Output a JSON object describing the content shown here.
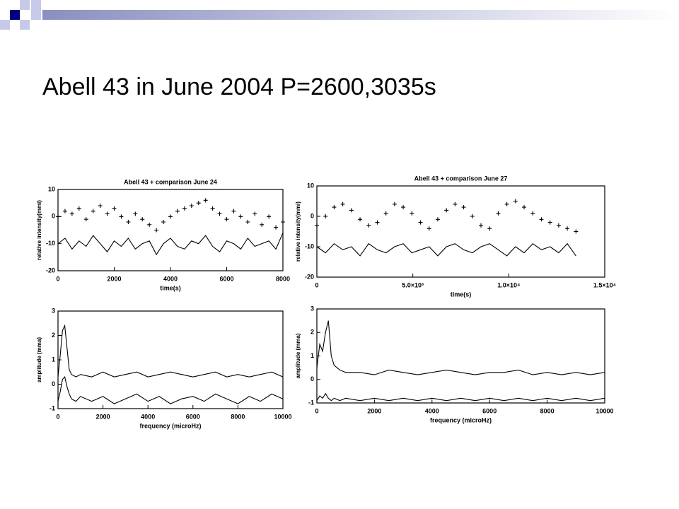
{
  "slide": {
    "title": "Abell 43  in June 2004 P=2600,3035s"
  },
  "chart_data": [
    {
      "type": "line",
      "title": "Abell 43 + comparison June 24",
      "xlabel": "time(s)",
      "ylabel": "relative intensity(mmi)",
      "xlim": [
        0,
        8000
      ],
      "xticks": [
        0,
        2000,
        4000,
        6000,
        8000
      ],
      "ylim": [
        -20,
        10
      ],
      "yticks": [
        -20,
        -10,
        0,
        10
      ],
      "x": [
        0,
        250,
        500,
        750,
        1000,
        1250,
        1500,
        1750,
        2000,
        2250,
        2500,
        2750,
        3000,
        3250,
        3500,
        3750,
        4000,
        4250,
        4500,
        4750,
        5000,
        5250,
        5500,
        5750,
        6000,
        6250,
        6500,
        6750,
        7000,
        7250,
        7500,
        7750,
        8000
      ],
      "series": [
        {
          "marker": "plus",
          "color": "#000000",
          "values": [
            0,
            2,
            1,
            3,
            -1,
            2,
            4,
            1,
            3,
            0,
            -2,
            1,
            -1,
            -3,
            -5,
            -2,
            0,
            2,
            3,
            4,
            5,
            6,
            3,
            1,
            -1,
            2,
            0,
            -2,
            1,
            -3,
            0,
            -4,
            -2
          ]
        },
        {
          "marker": "none",
          "color": "#000000",
          "values": [
            -10,
            -8,
            -12,
            -9,
            -11,
            -7,
            -10,
            -13,
            -9,
            -11,
            -8,
            -12,
            -10,
            -9,
            -14,
            -10,
            -8,
            -11,
            -12,
            -9,
            -10,
            -7,
            -11,
            -13,
            -9,
            -10,
            -12,
            -8,
            -11,
            -10,
            -9,
            -12,
            -6
          ]
        }
      ]
    },
    {
      "type": "line",
      "title": "Abell 43 + comparison June 27",
      "xlabel": "time(s)",
      "ylabel": "relative intensity(mmi)",
      "xlim": [
        0,
        15000
      ],
      "xticks": [
        0,
        {
          "value": 5000,
          "label": "5.0×10³"
        },
        {
          "value": 10000,
          "label": "1.0×10⁴"
        },
        {
          "value": 15000,
          "label": "1.5×10⁴"
        }
      ],
      "ylim": [
        -20,
        10
      ],
      "yticks": [
        -20,
        -10,
        0,
        10
      ],
      "x": [
        0,
        450,
        900,
        1350,
        1800,
        2250,
        2700,
        3150,
        3600,
        4050,
        4500,
        4950,
        5400,
        5850,
        6300,
        6750,
        7200,
        7650,
        8100,
        8550,
        9000,
        9450,
        9900,
        10350,
        10800,
        11250,
        11700,
        12150,
        12600,
        13050,
        13500
      ],
      "series": [
        {
          "marker": "plus",
          "color": "#000000",
          "values": [
            -3,
            0,
            3,
            4,
            2,
            -1,
            -3,
            -2,
            1,
            4,
            3,
            1,
            -2,
            -4,
            -1,
            2,
            4,
            3,
            0,
            -3,
            -4,
            1,
            4,
            5,
            3,
            1,
            -1,
            -2,
            -3,
            -4,
            -5
          ]
        },
        {
          "marker": "none",
          "color": "#000000",
          "values": [
            -10,
            -12,
            -9,
            -11,
            -10,
            -13,
            -9,
            -11,
            -12,
            -10,
            -9,
            -12,
            -11,
            -10,
            -13,
            -10,
            -9,
            -11,
            -12,
            -10,
            -9,
            -11,
            -13,
            -10,
            -12,
            -9,
            -11,
            -10,
            -12,
            -9,
            -13
          ]
        }
      ]
    },
    {
      "type": "line",
      "xlabel": "frequency (microHz)",
      "ylabel": "amplitude (mma)",
      "xlim": [
        0,
        10000
      ],
      "xticks": [
        0,
        2000,
        4000,
        6000,
        8000,
        10000
      ],
      "ylim": [
        -1,
        3
      ],
      "yticks": [
        -1,
        0,
        1,
        2,
        3
      ],
      "x": [
        0,
        100,
        200,
        300,
        400,
        500,
        600,
        800,
        1000,
        1500,
        2000,
        2500,
        3000,
        3500,
        4000,
        4500,
        5000,
        5500,
        6000,
        6500,
        7000,
        7500,
        8000,
        8500,
        9000,
        9500,
        10000
      ],
      "series": [
        {
          "marker": "none",
          "color": "#000000",
          "values": [
            0.3,
            1.2,
            2.2,
            2.4,
            1.5,
            0.6,
            0.4,
            0.3,
            0.4,
            0.3,
            0.5,
            0.3,
            0.4,
            0.5,
            0.3,
            0.4,
            0.5,
            0.4,
            0.3,
            0.4,
            0.5,
            0.3,
            0.4,
            0.3,
            0.4,
            0.5,
            0.3
          ]
        },
        {
          "marker": "none",
          "color": "#000000",
          "values": [
            -0.7,
            -0.3,
            0.2,
            0.3,
            -0.1,
            -0.4,
            -0.6,
            -0.7,
            -0.5,
            -0.7,
            -0.5,
            -0.8,
            -0.6,
            -0.4,
            -0.7,
            -0.5,
            -0.8,
            -0.6,
            -0.5,
            -0.7,
            -0.4,
            -0.6,
            -0.8,
            -0.5,
            -0.7,
            -0.4,
            -0.6
          ]
        }
      ]
    },
    {
      "type": "line",
      "xlabel": "frequency (microHz)",
      "ylabel": "amplitude (mma)",
      "xlim": [
        0,
        10000
      ],
      "xticks": [
        0,
        2000,
        4000,
        6000,
        8000,
        10000
      ],
      "ylim": [
        -1,
        3
      ],
      "yticks": [
        -1,
        0,
        1,
        2,
        3
      ],
      "x": [
        0,
        100,
        200,
        300,
        400,
        500,
        600,
        800,
        1000,
        1500,
        2000,
        2500,
        3000,
        3500,
        4000,
        4500,
        5000,
        5500,
        6000,
        6500,
        7000,
        7500,
        8000,
        8500,
        9000,
        9500,
        10000
      ],
      "series": [
        {
          "marker": "none",
          "color": "#000000",
          "values": [
            0.5,
            1.5,
            1.2,
            2.0,
            2.5,
            1.0,
            0.6,
            0.4,
            0.3,
            0.3,
            0.2,
            0.4,
            0.3,
            0.2,
            0.3,
            0.4,
            0.3,
            0.2,
            0.3,
            0.3,
            0.4,
            0.2,
            0.3,
            0.2,
            0.3,
            0.2,
            0.3
          ]
        },
        {
          "marker": "none",
          "color": "#000000",
          "values": [
            -0.9,
            -0.7,
            -0.8,
            -0.6,
            -0.8,
            -0.9,
            -0.8,
            -0.9,
            -0.8,
            -0.9,
            -0.8,
            -0.9,
            -0.8,
            -0.9,
            -0.8,
            -0.9,
            -0.8,
            -0.9,
            -0.8,
            -0.9,
            -0.8,
            -0.9,
            -0.8,
            -0.9,
            -0.8,
            -0.9,
            -0.8
          ]
        }
      ]
    }
  ]
}
